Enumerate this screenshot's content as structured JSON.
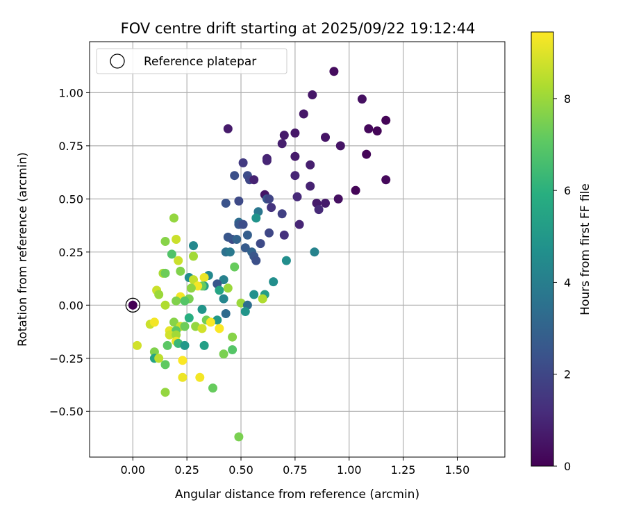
{
  "chart_data": {
    "type": "scatter",
    "title": "FOV centre drift starting at 2025/09/22 19:12:44",
    "xlabel": "Angular distance from reference (arcmin)",
    "ylabel": "Rotation from reference (arcmin)",
    "xlim": [
      -0.2,
      1.72
    ],
    "ylim": [
      -0.715,
      1.24
    ],
    "xticks": [
      "0.00",
      "0.25",
      "0.50",
      "0.75",
      "1.00",
      "1.25",
      "1.50"
    ],
    "xtick_values": [
      0,
      0.25,
      0.5,
      0.75,
      1.0,
      1.25,
      1.5
    ],
    "yticks": [
      "−0.50",
      "−0.25",
      "0.00",
      "0.25",
      "0.50",
      "0.75",
      "1.00"
    ],
    "ytick_values": [
      -0.5,
      -0.25,
      0,
      0.25,
      0.5,
      0.75,
      1.0
    ],
    "grid": true,
    "legend": {
      "placement": "top-left",
      "entry": "Reference platepar"
    },
    "colorbar": {
      "label": "Hours from first FF file",
      "colormap": "viridis",
      "range": [
        0,
        9.45
      ],
      "ticks": [
        "0",
        "2",
        "4",
        "6",
        "8"
      ],
      "tick_values": [
        0,
        2,
        4,
        6,
        8
      ]
    },
    "reference_point": {
      "x": 0,
      "y": 0,
      "hours": 0
    },
    "points": [
      [
        0.93,
        1.1,
        0.3
      ],
      [
        0.83,
        0.99,
        0.6
      ],
      [
        1.06,
        0.97,
        0.4
      ],
      [
        1.17,
        0.87,
        0.1
      ],
      [
        0.79,
        0.9,
        0.6
      ],
      [
        1.09,
        0.83,
        0.2
      ],
      [
        1.13,
        0.82,
        0.1
      ],
      [
        0.44,
        0.83,
        0.7
      ],
      [
        0.75,
        0.81,
        0.6
      ],
      [
        0.7,
        0.8,
        0.7
      ],
      [
        0.89,
        0.79,
        0.5
      ],
      [
        0.69,
        0.76,
        0.8
      ],
      [
        0.96,
        0.75,
        0.5
      ],
      [
        1.08,
        0.71,
        0.1
      ],
      [
        0.75,
        0.7,
        0.7
      ],
      [
        0.62,
        0.69,
        0.9
      ],
      [
        0.62,
        0.68,
        1.0
      ],
      [
        0.51,
        0.67,
        1.6
      ],
      [
        0.82,
        0.66,
        0.8
      ],
      [
        0.75,
        0.61,
        1.0
      ],
      [
        0.47,
        0.61,
        2.3
      ],
      [
        0.53,
        0.61,
        2.2
      ],
      [
        0.54,
        0.59,
        2.0
      ],
      [
        0.56,
        0.59,
        0.9
      ],
      [
        1.17,
        0.59,
        0.2
      ],
      [
        0.82,
        0.56,
        0.9
      ],
      [
        1.03,
        0.54,
        0.1
      ],
      [
        0.61,
        0.52,
        0.5
      ],
      [
        0.76,
        0.51,
        1.1
      ],
      [
        0.95,
        0.5,
        0.4
      ],
      [
        0.62,
        0.5,
        2.6
      ],
      [
        0.63,
        0.5,
        1.9
      ],
      [
        0.43,
        0.48,
        2.4
      ],
      [
        0.49,
        0.49,
        2.1
      ],
      [
        0.85,
        0.48,
        0.7
      ],
      [
        0.89,
        0.48,
        0.7
      ],
      [
        0.86,
        0.45,
        1.1
      ],
      [
        0.64,
        0.46,
        1.4
      ],
      [
        0.58,
        0.44,
        3.7
      ],
      [
        0.69,
        0.43,
        1.8
      ],
      [
        0.57,
        0.41,
        4.8
      ],
      [
        0.49,
        0.39,
        3.4
      ],
      [
        0.49,
        0.38,
        2.6
      ],
      [
        0.51,
        0.38,
        2.2
      ],
      [
        0.77,
        0.38,
        1.0
      ],
      [
        0.53,
        0.33,
        2.8
      ],
      [
        0.63,
        0.34,
        2.0
      ],
      [
        0.7,
        0.33,
        1.3
      ],
      [
        0.46,
        0.31,
        2.1
      ],
      [
        0.48,
        0.31,
        3.0
      ],
      [
        0.44,
        0.32,
        2.5
      ],
      [
        0.59,
        0.29,
        2.1
      ],
      [
        0.28,
        0.28,
        4.4
      ],
      [
        0.52,
        0.27,
        2.7
      ],
      [
        0.55,
        0.25,
        3.0
      ],
      [
        0.56,
        0.23,
        2.5
      ],
      [
        0.43,
        0.25,
        3.5
      ],
      [
        0.45,
        0.25,
        3.8
      ],
      [
        0.84,
        0.25,
        4.2
      ],
      [
        0.57,
        0.21,
        2.3
      ],
      [
        0.71,
        0.21,
        4.6
      ],
      [
        0.18,
        0.24,
        6.8
      ],
      [
        0.15,
        0.3,
        7.7
      ],
      [
        0.2,
        0.31,
        8.7
      ],
      [
        0.19,
        0.41,
        7.9
      ],
      [
        0.28,
        0.23,
        8.1
      ],
      [
        0.21,
        0.21,
        8.7
      ],
      [
        0.47,
        0.18,
        7.2
      ],
      [
        0.22,
        0.16,
        7.6
      ],
      [
        0.14,
        0.15,
        8.2
      ],
      [
        0.15,
        0.15,
        7.3
      ],
      [
        0.35,
        0.14,
        4.4
      ],
      [
        0.26,
        0.13,
        4.6
      ],
      [
        0.28,
        0.12,
        8.6
      ],
      [
        0.33,
        0.13,
        9.2
      ],
      [
        0.42,
        0.12,
        4.1
      ],
      [
        0.33,
        0.09,
        5.3
      ],
      [
        0.32,
        0.09,
        7.2
      ],
      [
        0.3,
        0.09,
        9.3
      ],
      [
        0.27,
        0.08,
        7.8
      ],
      [
        0.44,
        0.08,
        8.0
      ],
      [
        0.39,
        0.1,
        2.5
      ],
      [
        0.11,
        0.07,
        8.7
      ],
      [
        0.4,
        0.07,
        5.5
      ],
      [
        0.65,
        0.11,
        4.6
      ],
      [
        0.12,
        0.05,
        8.0
      ],
      [
        0.56,
        0.05,
        4.7
      ],
      [
        0.61,
        0.05,
        5.2
      ],
      [
        0.42,
        0.03,
        4.3
      ],
      [
        0.22,
        0.04,
        9.3
      ],
      [
        0.2,
        0.02,
        7.6
      ],
      [
        0.26,
        0.03,
        7.5
      ],
      [
        0.6,
        0.03,
        8.3
      ],
      [
        0.24,
        0.02,
        6.9
      ],
      [
        0.5,
        0.01,
        8.0
      ],
      [
        0.15,
        0.0,
        8.3
      ],
      [
        0.53,
        0.0,
        3.4
      ],
      [
        0.32,
        -0.02,
        4.9
      ],
      [
        0.52,
        -0.03,
        4.9
      ],
      [
        0.43,
        -0.04,
        3.3
      ],
      [
        0.26,
        -0.06,
        5.9
      ],
      [
        0.39,
        -0.07,
        5.0
      ],
      [
        0.34,
        -0.07,
        7.4
      ],
      [
        0.36,
        -0.08,
        9.4
      ],
      [
        0.19,
        -0.08,
        7.7
      ],
      [
        0.08,
        -0.09,
        8.7
      ],
      [
        0.1,
        -0.08,
        9.3
      ],
      [
        0.22,
        -0.1,
        8.7
      ],
      [
        0.24,
        -0.1,
        7.3
      ],
      [
        0.29,
        -0.1,
        7.9
      ],
      [
        0.32,
        -0.11,
        8.8
      ],
      [
        0.4,
        -0.11,
        9.4
      ],
      [
        0.17,
        -0.12,
        9.1
      ],
      [
        0.2,
        -0.12,
        7.0
      ],
      [
        0.17,
        -0.14,
        8.8
      ],
      [
        0.2,
        -0.14,
        8.1
      ],
      [
        0.46,
        -0.15,
        7.7
      ],
      [
        0.2,
        -0.17,
        9.2
      ],
      [
        0.16,
        -0.19,
        7.0
      ],
      [
        0.21,
        -0.18,
        6.3
      ],
      [
        0.24,
        -0.19,
        5.0
      ],
      [
        0.33,
        -0.19,
        5.3
      ],
      [
        0.02,
        -0.19,
        8.8
      ],
      [
        0.1,
        -0.22,
        7.6
      ],
      [
        0.42,
        -0.23,
        7.5
      ],
      [
        0.46,
        -0.21,
        6.9
      ],
      [
        0.1,
        -0.25,
        5.5
      ],
      [
        0.12,
        -0.25,
        8.5
      ],
      [
        0.23,
        -0.26,
        9.4
      ],
      [
        0.15,
        -0.28,
        7.1
      ],
      [
        0.23,
        -0.34,
        9.2
      ],
      [
        0.31,
        -0.34,
        9.3
      ],
      [
        0.37,
        -0.39,
        7.2
      ],
      [
        0.15,
        -0.41,
        7.9
      ],
      [
        0.49,
        -0.62,
        7.5
      ]
    ]
  }
}
